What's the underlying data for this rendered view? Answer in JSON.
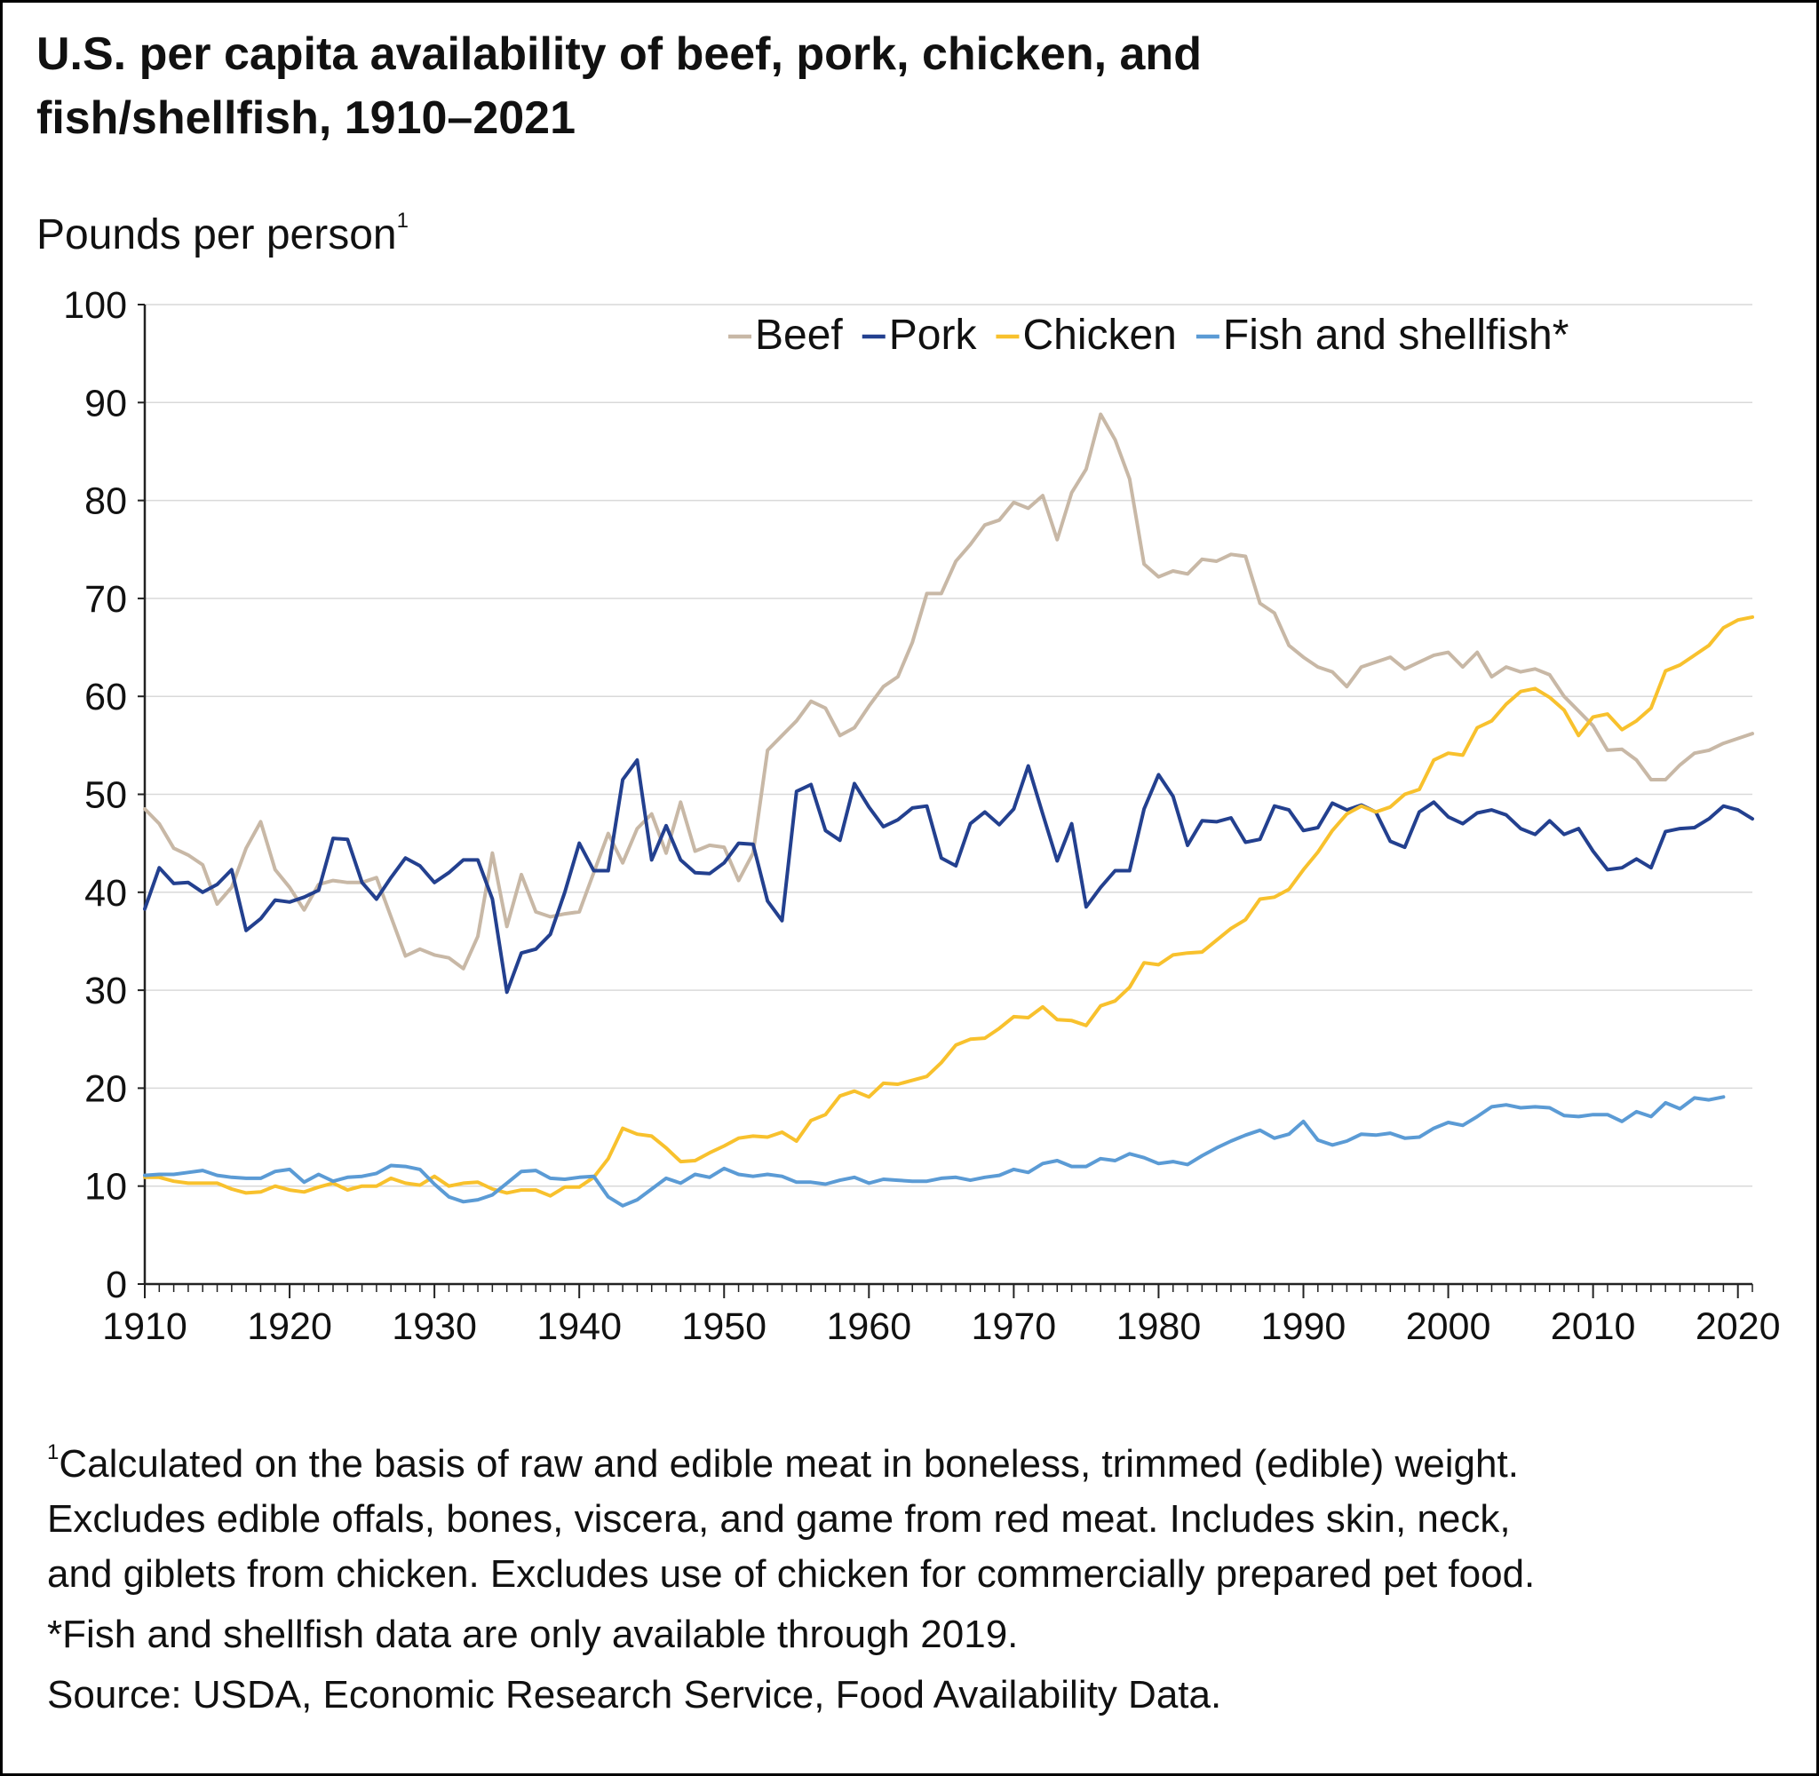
{
  "title_line1": "U.S. per capita availability of beef, pork, chicken, and",
  "title_line2": "fish/shellfish, 1910–2021",
  "footnote_marker": "1",
  "footnote_text": "Calculated on the basis of raw and edible meat in boneless, trimmed (edible) weight.",
  "footnote_line2": "Excludes edible offals, bones, viscera, and game from red meat. Includes skin, neck,",
  "footnote_line3": "and giblets from chicken. Excludes use of chicken for commercially prepared pet food.",
  "note_fish": "*Fish and shellfish data are only available through 2019.",
  "source": "Source: USDA, Economic Research Service, Food Availability Data.",
  "chart_data": {
    "type": "line",
    "title": "U.S. per capita availability of beef, pork, chicken, and fish/shellfish, 1910–2021",
    "ylabel": "Pounds per person",
    "ylabel_superscript": "1",
    "xlabel": "",
    "xlim": [
      1910,
      2021
    ],
    "ylim": [
      0,
      100
    ],
    "xticks": [
      1910,
      1920,
      1930,
      1940,
      1950,
      1960,
      1970,
      1980,
      1990,
      2000,
      2010,
      2020
    ],
    "yticks": [
      0,
      10,
      20,
      30,
      40,
      50,
      60,
      70,
      80,
      90,
      100
    ],
    "grid": "horizontal",
    "legend_position": "top-right",
    "series": [
      {
        "name": "Beef",
        "color": "#c8b8a6",
        "start": 1910,
        "values": [
          48.5,
          47.0,
          44.5,
          43.8,
          42.8,
          38.8,
          40.5,
          44.5,
          47.2,
          42.3,
          40.5,
          38.2,
          40.8,
          41.2,
          41.0,
          41.0,
          41.5,
          37.5,
          33.5,
          34.2,
          33.6,
          33.3,
          32.2,
          35.5,
          44.0,
          36.5,
          41.8,
          38.0,
          37.5,
          37.8,
          38.0,
          42.0,
          46.0,
          43.0,
          46.5,
          48.0,
          44.0,
          49.2,
          44.2,
          44.8,
          44.6,
          41.2,
          44.0,
          54.5,
          56.0,
          57.5,
          59.5,
          58.8,
          56.0,
          56.8,
          59.0,
          61.0,
          62.0,
          65.5,
          70.5,
          70.5,
          73.8,
          75.5,
          77.5,
          78.0,
          79.8,
          79.2,
          80.5,
          76.0,
          80.8,
          83.2,
          88.8,
          86.2,
          82.2,
          73.5,
          72.2,
          72.8,
          72.5,
          74.0,
          73.8,
          74.5,
          74.3,
          69.5,
          68.5,
          65.2,
          64.0,
          63.0,
          62.5,
          61.0,
          63.0,
          63.5,
          64.0,
          62.8,
          63.5,
          64.2,
          64.5,
          63.0,
          64.5,
          62.0,
          63.0,
          62.5,
          62.8,
          62.2,
          60.0,
          58.5,
          57.0,
          54.5,
          54.6,
          53.5,
          51.5,
          51.5,
          53.0,
          54.2,
          54.5,
          55.2,
          55.7,
          56.2
        ]
      },
      {
        "name": "Pork",
        "color": "#23408f",
        "start": 1910,
        "values": [
          38.3,
          42.5,
          40.9,
          41.0,
          40.0,
          40.8,
          42.3,
          36.1,
          37.3,
          39.2,
          39.0,
          39.5,
          40.2,
          45.5,
          45.4,
          41.0,
          39.3,
          41.5,
          43.5,
          42.7,
          41.0,
          42.0,
          43.3,
          43.3,
          39.3,
          29.8,
          33.8,
          34.2,
          35.7,
          40.0,
          45.0,
          42.2,
          42.2,
          51.5,
          53.5,
          43.3,
          46.8,
          43.3,
          42.0,
          41.9,
          43.0,
          45.0,
          44.9,
          39.1,
          37.1,
          50.3,
          51.0,
          46.3,
          45.3,
          51.1,
          48.7,
          46.7,
          47.4,
          48.6,
          48.8,
          43.5,
          42.7,
          47.0,
          48.2,
          46.9,
          48.5,
          52.9,
          48.0,
          43.2,
          47.0,
          38.5,
          40.5,
          42.2,
          42.2,
          48.5,
          52.0,
          49.8,
          44.8,
          47.3,
          47.2,
          47.6,
          45.1,
          45.4,
          48.8,
          48.4,
          46.3,
          46.6,
          49.1,
          48.4,
          48.9,
          48.2,
          45.2,
          44.6,
          48.2,
          49.2,
          47.7,
          47.0,
          48.1,
          48.4,
          47.9,
          46.5,
          45.9,
          47.3,
          45.9,
          46.5,
          44.2,
          42.3,
          42.5,
          43.4,
          42.5,
          46.2,
          46.5,
          46.6,
          47.5,
          48.8,
          48.4,
          47.5
        ]
      },
      {
        "name": "Chicken",
        "color": "#f8c12d",
        "start": 1910,
        "values": [
          10.9,
          10.9,
          10.5,
          10.3,
          10.3,
          10.3,
          9.7,
          9.3,
          9.4,
          10.0,
          9.6,
          9.4,
          9.9,
          10.3,
          9.6,
          10.0,
          10.0,
          10.8,
          10.3,
          10.1,
          11.0,
          10.0,
          10.3,
          10.4,
          9.7,
          9.3,
          9.6,
          9.6,
          9.0,
          9.9,
          9.9,
          10.9,
          12.8,
          15.9,
          15.3,
          15.1,
          13.9,
          12.5,
          12.6,
          13.4,
          14.1,
          14.9,
          15.1,
          15.0,
          15.5,
          14.6,
          16.7,
          17.3,
          19.2,
          19.7,
          19.1,
          20.5,
          20.4,
          20.8,
          21.2,
          22.6,
          24.4,
          25.0,
          25.1,
          26.1,
          27.3,
          27.2,
          28.3,
          27.0,
          26.9,
          26.4,
          28.4,
          28.9,
          30.3,
          32.8,
          32.6,
          33.6,
          33.8,
          33.9,
          35.1,
          36.3,
          37.2,
          39.3,
          39.5,
          40.3,
          42.3,
          44.1,
          46.3,
          48.0,
          48.8,
          48.2,
          48.7,
          50.0,
          50.5,
          53.5,
          54.2,
          54.0,
          56.8,
          57.5,
          59.2,
          60.5,
          60.8,
          59.9,
          58.6,
          56.0,
          57.9,
          58.2,
          56.6,
          57.5,
          58.8,
          62.6,
          63.2,
          64.2,
          65.2,
          67.0,
          67.8,
          68.1
        ]
      },
      {
        "name": "Fish and shellfish*",
        "color": "#5b9bd5",
        "start": 1910,
        "values": [
          11.1,
          11.2,
          11.2,
          11.4,
          11.6,
          11.1,
          10.9,
          10.8,
          10.8,
          11.5,
          11.7,
          10.4,
          11.2,
          10.5,
          10.9,
          11.0,
          11.3,
          12.1,
          12.0,
          11.7,
          10.2,
          8.9,
          8.4,
          8.6,
          9.1,
          10.3,
          11.5,
          11.6,
          10.8,
          10.7,
          10.9,
          11.0,
          8.9,
          8.0,
          8.6,
          9.7,
          10.8,
          10.3,
          11.2,
          10.9,
          11.8,
          11.2,
          11.0,
          11.2,
          11.0,
          10.4,
          10.4,
          10.2,
          10.6,
          10.9,
          10.3,
          10.7,
          10.6,
          10.5,
          10.5,
          10.8,
          10.9,
          10.6,
          10.9,
          11.1,
          11.7,
          11.4,
          12.3,
          12.6,
          12.0,
          12.0,
          12.8,
          12.6,
          13.3,
          12.9,
          12.3,
          12.5,
          12.2,
          13.1,
          13.9,
          14.6,
          15.2,
          15.7,
          14.9,
          15.3,
          16.6,
          14.7,
          14.2,
          14.6,
          15.3,
          15.2,
          15.4,
          14.9,
          15.0,
          15.9,
          16.5,
          16.2,
          17.1,
          18.1,
          18.3,
          18.0,
          18.1,
          18.0,
          17.2,
          17.1,
          17.3,
          17.3,
          16.6,
          17.6,
          17.1,
          18.5,
          17.9,
          19.0,
          18.8,
          19.1
        ]
      }
    ]
  }
}
